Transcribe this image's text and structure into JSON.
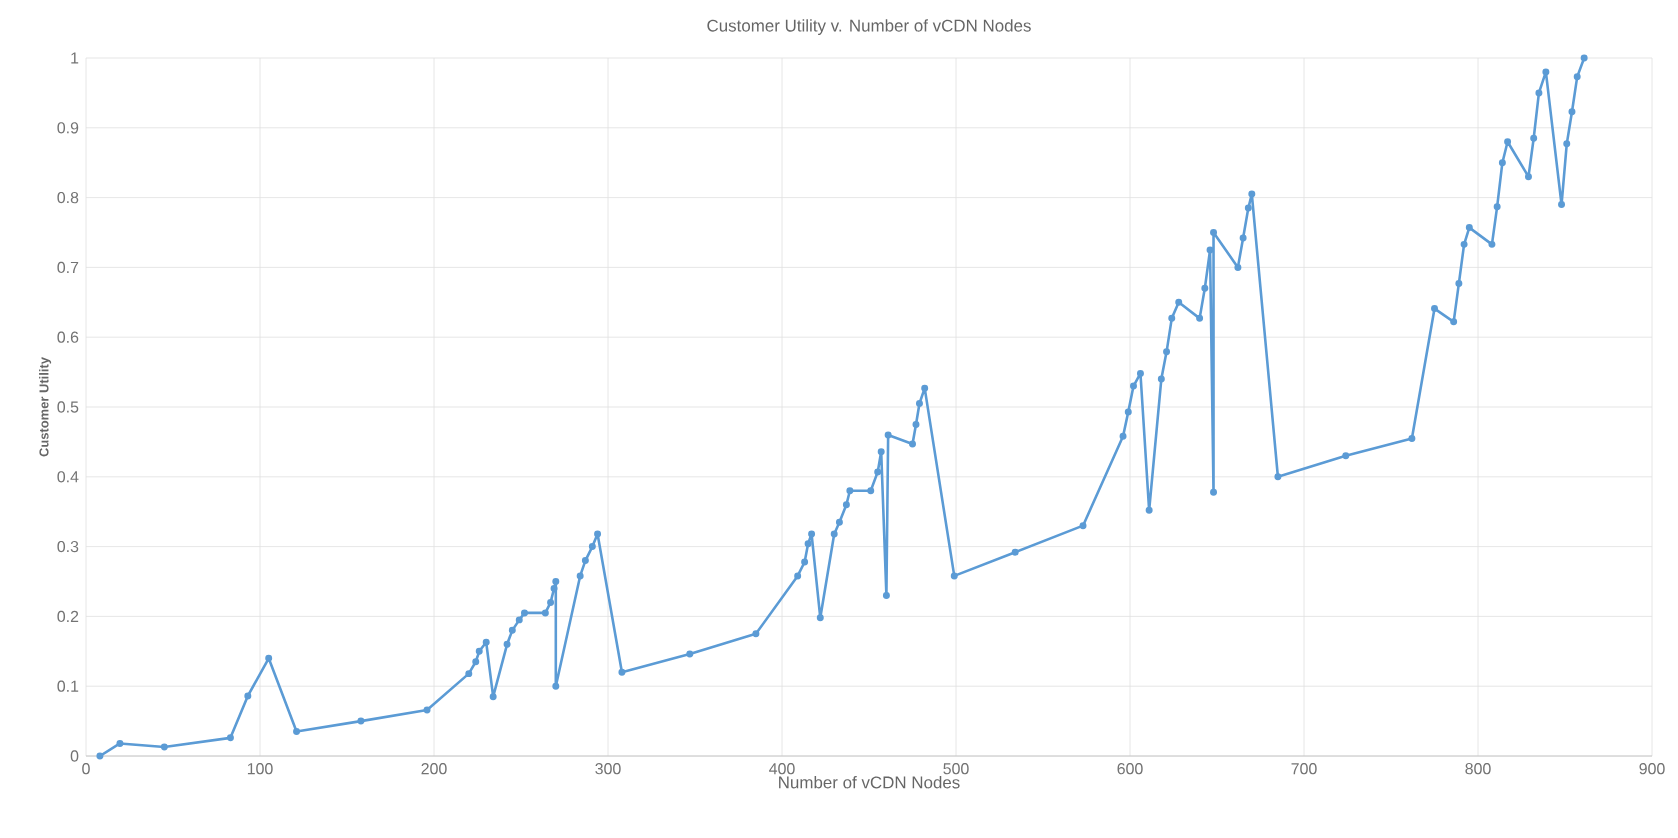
{
  "chart_data": {
    "type": "line",
    "title": "Customer Utility v. Number of vCDN Nodes",
    "xlabel": "Number of vCDN Nodes",
    "ylabel": "Customer Utility",
    "x": [
      8,
      19.5,
      45,
      83,
      93,
      105,
      121,
      158,
      196,
      220,
      224,
      226,
      230,
      234,
      242,
      245,
      249,
      252,
      264,
      267,
      269,
      270,
      270,
      284,
      287,
      291,
      294,
      308,
      347,
      385,
      409,
      413,
      415,
      417,
      422,
      430,
      433,
      437,
      439,
      451,
      455,
      457,
      460,
      461,
      475,
      477,
      479,
      482,
      499,
      534,
      573,
      596,
      599,
      602,
      606,
      611,
      618,
      621,
      624,
      628,
      640,
      643,
      646,
      648,
      648,
      662,
      665,
      668,
      670,
      685,
      724,
      762,
      775,
      786,
      789,
      792,
      795,
      808,
      811,
      814,
      817,
      829,
      832,
      835,
      839,
      848,
      851,
      854,
      857,
      861
    ],
    "series": [
      {
        "color": "#5b9bd5",
        "values": [
          0,
          0.018,
          0.013,
          0.026,
          0.086,
          0.14,
          0.035,
          0.05,
          0.066,
          0.118,
          0.135,
          0.15,
          0.163,
          0.085,
          0.16,
          0.18,
          0.195,
          0.205,
          0.205,
          0.22,
          0.24,
          0.25,
          0.1,
          0.258,
          0.28,
          0.3,
          0.318,
          0.12,
          0.146,
          0.175,
          0.258,
          0.278,
          0.304,
          0.318,
          0.198,
          0.318,
          0.335,
          0.36,
          0.38,
          0.38,
          0.407,
          0.436,
          0.23,
          0.46,
          0.447,
          0.475,
          0.505,
          0.527,
          0.258,
          0.292,
          0.33,
          0.458,
          0.493,
          0.53,
          0.548,
          0.352,
          0.54,
          0.579,
          0.627,
          0.65,
          0.627,
          0.67,
          0.725,
          0.378,
          0.75,
          0.7,
          0.742,
          0.785,
          0.805,
          0.4,
          0.43,
          0.455,
          0.641,
          0.622,
          0.677,
          0.733,
          0.757,
          0.733,
          0.787,
          0.85,
          0.88,
          0.83,
          0.885,
          0.95,
          0.98,
          0.79,
          0.877,
          0.923,
          0.973,
          1.0
        ]
      }
    ],
    "xlim": [
      0,
      900
    ],
    "xticks": [
      0,
      100,
      200,
      300,
      400,
      500,
      600,
      700,
      800,
      900
    ],
    "ylim": [
      0,
      1
    ],
    "yticks": [
      0,
      0.1,
      0.2,
      0.3,
      0.4,
      0.5,
      0.6,
      0.7,
      0.8,
      0.9,
      1
    ],
    "grid": true,
    "marker": "circle",
    "line_style": "solid"
  }
}
